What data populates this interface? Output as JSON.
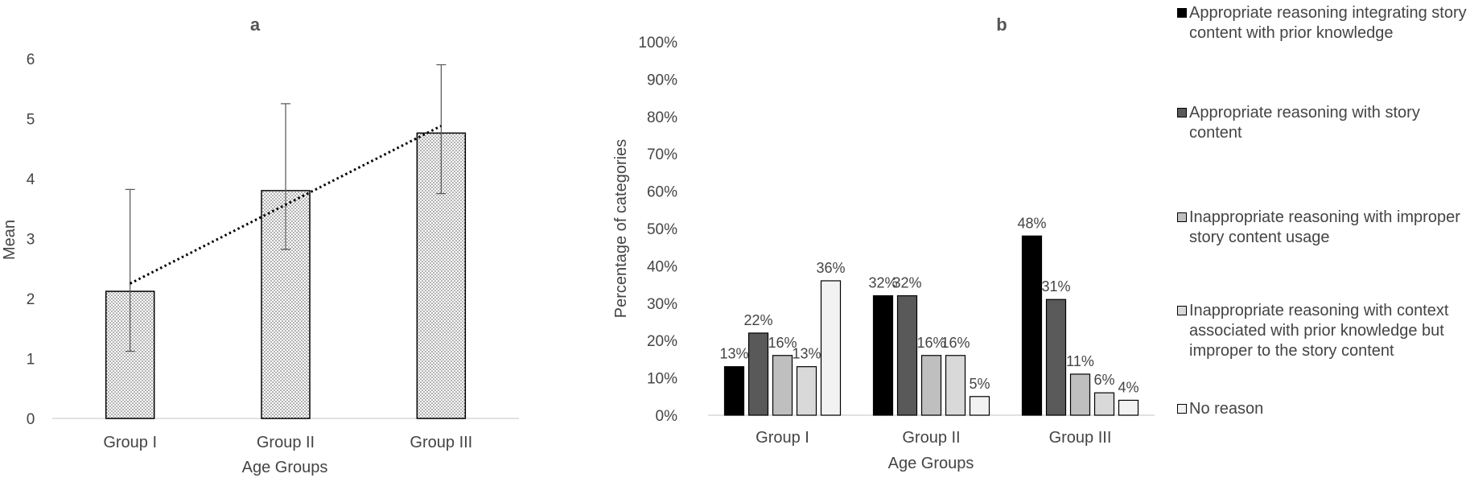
{
  "colors": {
    "text": "#444444",
    "axis": "#d9d9d9",
    "bar_outline": "#000000",
    "dots": "#555555"
  },
  "chart_data": [
    {
      "type": "bar",
      "title": "a",
      "categories": [
        "Group I",
        "Group II",
        "Group III"
      ],
      "values": [
        2.12,
        3.8,
        4.76
      ],
      "error_upper": [
        3.82,
        5.25,
        5.9
      ],
      "error_lower": [
        1.12,
        2.82,
        3.75
      ],
      "trendline": {
        "style": "dotted",
        "start": 2.25,
        "end": 4.88
      },
      "pattern": "dotted-fill",
      "xlabel": "Age Groups",
      "ylabel": "Mean",
      "ylim": [
        0,
        6
      ],
      "yticks": [
        "0",
        "1",
        "2",
        "3",
        "4",
        "5",
        "6"
      ],
      "grid": false,
      "legend": "none"
    },
    {
      "type": "bar",
      "title": "b",
      "categories": [
        "Group I",
        "Group II",
        "Group III"
      ],
      "xlabel": "Age Groups",
      "ylabel": "Percentage of categories",
      "ylim": [
        0,
        100
      ],
      "yticks": [
        "0%",
        "10%",
        "20%",
        "30%",
        "40%",
        "50%",
        "60%",
        "70%",
        "80%",
        "90%",
        "100%"
      ],
      "grid": false,
      "legend": "right",
      "series": [
        {
          "name": "Appropriate reasoning integrating story content with prior knowledge",
          "values": [
            13,
            32,
            48
          ],
          "labels": [
            "13%",
            "32%",
            "48%"
          ],
          "color": "#000000"
        },
        {
          "name": "Appropriate reasoning with story content",
          "values": [
            22,
            32,
            31
          ],
          "labels": [
            "22%",
            "32%",
            "31%"
          ],
          "color": "#595959"
        },
        {
          "name": "Inappropriate reasoning with improper story content usage",
          "values": [
            16,
            16,
            11
          ],
          "labels": [
            "16%",
            "16%",
            "11%"
          ],
          "color": "#bfbfbf"
        },
        {
          "name": "Inappropriate reasoning with context associated with prior knowledge but improper to the story content",
          "values": [
            13,
            16,
            6
          ],
          "labels": [
            "13%",
            "16%",
            "6%"
          ],
          "color": "#d9d9d9"
        },
        {
          "name": "No reason",
          "values": [
            36,
            5,
            4
          ],
          "labels": [
            "36%",
            "5%",
            "4%"
          ],
          "color": "#f2f2f2"
        }
      ]
    }
  ]
}
